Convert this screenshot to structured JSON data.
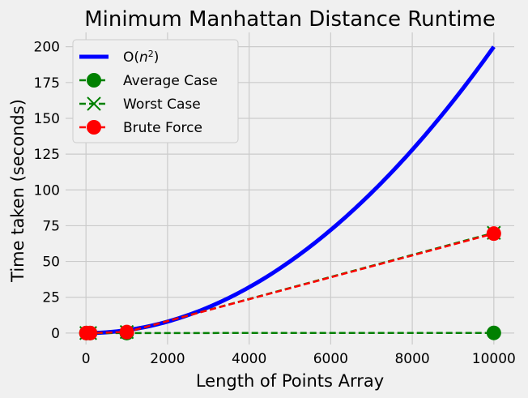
{
  "chart_data": {
    "type": "line",
    "title": "Minimum Manhattan Distance Runtime",
    "xlabel": "Length of Points Array",
    "ylabel": "Time taken (seconds)",
    "xlim": [
      -500,
      10500
    ],
    "ylim": [
      -8,
      210
    ],
    "xticks": [
      0,
      2000,
      4000,
      6000,
      8000,
      10000
    ],
    "yticks": [
      0,
      25,
      50,
      75,
      100,
      125,
      150,
      175,
      200
    ],
    "grid": true,
    "legend_position": "top-left",
    "curve": {
      "name_base": "O(",
      "name_var": "n",
      "name_exp": "2",
      "name_close": ")",
      "color": "#0000ff",
      "coefficient": 2e-06,
      "x_range": [
        0,
        10000
      ]
    },
    "series": [
      {
        "name": "Average Case",
        "color": "#008000",
        "linestyle": "dashed",
        "marker": "circle",
        "x": [
          10,
          100,
          1000,
          10000
        ],
        "y": [
          0.0,
          0.001,
          0.01,
          0.1
        ]
      },
      {
        "name": "Worst Case",
        "color": "#008000",
        "linestyle": "dashed",
        "marker": "x",
        "x": [
          10,
          100,
          1000,
          10000
        ],
        "y": [
          0.0001,
          0.007,
          0.7,
          70
        ]
      },
      {
        "name": "Brute Force",
        "color": "#ff0000",
        "linestyle": "dashed",
        "marker": "circle",
        "x": [
          10,
          100,
          1000,
          10000
        ],
        "y": [
          0.0001,
          0.007,
          0.7,
          69.5
        ]
      }
    ]
  }
}
